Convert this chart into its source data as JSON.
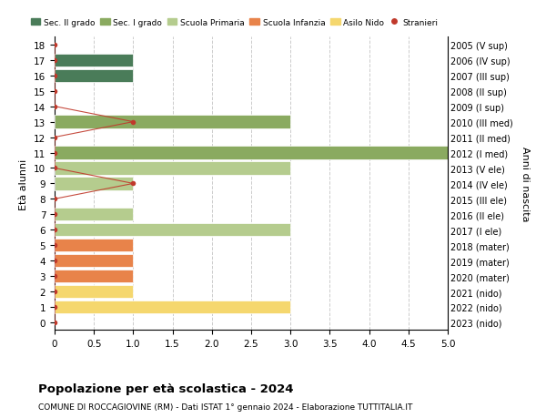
{
  "ages": [
    0,
    1,
    2,
    3,
    4,
    5,
    6,
    7,
    8,
    9,
    10,
    11,
    12,
    13,
    14,
    15,
    16,
    17,
    18
  ],
  "right_labels": [
    "2023 (nido)",
    "2022 (nido)",
    "2021 (nido)",
    "2020 (mater)",
    "2019 (mater)",
    "2018 (mater)",
    "2017 (I ele)",
    "2016 (II ele)",
    "2015 (III ele)",
    "2014 (IV ele)",
    "2013 (V ele)",
    "2012 (I med)",
    "2011 (II med)",
    "2010 (III med)",
    "2009 (I sup)",
    "2008 (II sup)",
    "2007 (III sup)",
    "2006 (IV sup)",
    "2005 (V sup)"
  ],
  "bar_values": [
    0,
    3,
    1,
    1,
    1,
    1,
    3,
    1,
    0,
    1,
    3,
    5,
    0,
    3,
    0,
    0,
    1,
    1,
    0
  ],
  "bar_colors": [
    "#f5d76e",
    "#f5d76e",
    "#f5d76e",
    "#e8834a",
    "#e8834a",
    "#e8834a",
    "#b5cc8e",
    "#b5cc8e",
    "#b5cc8e",
    "#b5cc8e",
    "#b5cc8e",
    "#8aaa60",
    "#8aaa60",
    "#8aaa60",
    "#4a7c59",
    "#4a7c59",
    "#4a7c59",
    "#4a7c59",
    "#4a7c59"
  ],
  "stranieri_values": [
    0,
    0,
    0,
    0,
    0,
    0,
    0,
    0,
    0,
    1,
    0,
    0,
    0,
    1,
    0,
    0,
    0,
    0,
    0
  ],
  "stranieri_color": "#c0392b",
  "legend_items": [
    {
      "label": "Sec. II grado",
      "color": "#4a7c59"
    },
    {
      "label": "Sec. I grado",
      "color": "#8aaa60"
    },
    {
      "label": "Scuola Primaria",
      "color": "#b5cc8e"
    },
    {
      "label": "Scuola Infanzia",
      "color": "#e8834a"
    },
    {
      "label": "Asilo Nido",
      "color": "#f5d76e"
    },
    {
      "label": "Stranieri",
      "color": "#c0392b"
    }
  ],
  "ylabel_left": "Età alunni",
  "ylabel_right": "Anni di nascita",
  "xlim": [
    0,
    5.0
  ],
  "xticks": [
    0,
    0.5,
    1.0,
    1.5,
    2.0,
    2.5,
    3.0,
    3.5,
    4.0,
    4.5,
    5.0
  ],
  "title": "Popolazione per età scolastica - 2024",
  "subtitle": "COMUNE DI ROCCAGIOVINE (RM) - Dati ISTAT 1° gennaio 2024 - Elaborazione TUTTITALIA.IT",
  "background_color": "#ffffff",
  "grid_color": "#cccccc",
  "figsize": [
    6.0,
    4.6
  ],
  "dpi": 100
}
